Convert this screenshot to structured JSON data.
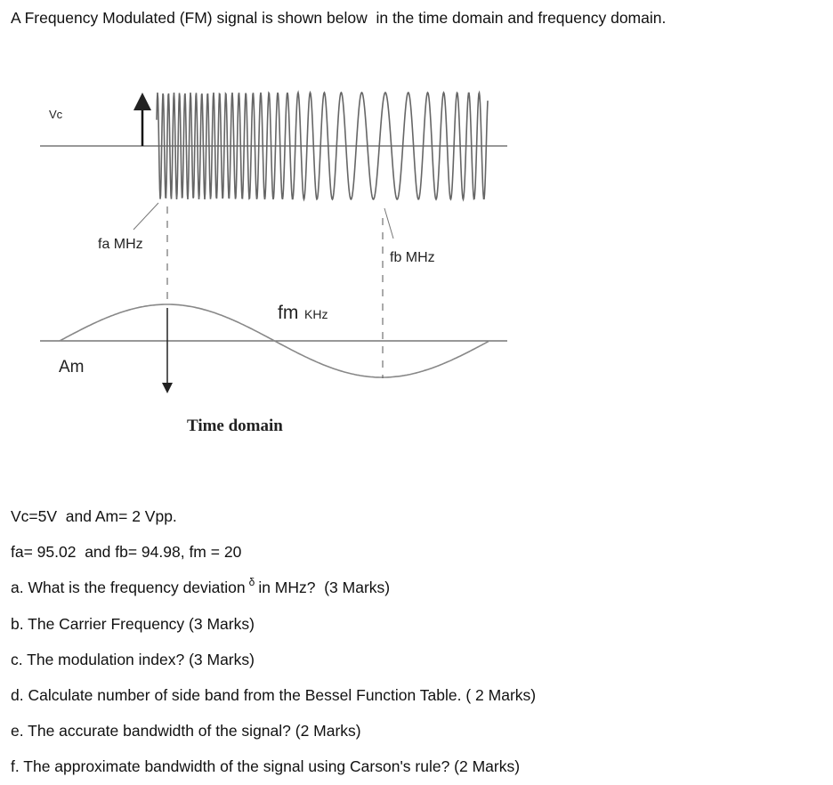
{
  "header": {
    "title": "A Frequency Modulated (FM) signal is shown below  in the time domain and frequency domain."
  },
  "diagram": {
    "vc_label": "Vc",
    "fa_label": "fa MHz",
    "fb_label": "fb MHz",
    "fm_label": "fm",
    "fm_unit": "KHz",
    "am_label": "Am",
    "caption": "Time domain"
  },
  "given": [
    "Vc=5V  and Am= 2 Vpp.",
    "fa= 95.02  and fb= 94.98, fm = 20"
  ],
  "questions": [
    {
      "text": "a. What is the frequency deviation",
      "symbol": "δ",
      "suffix": "in MHz?  (3 Marks)"
    },
    {
      "text": "b. The Carrier Frequency (3 Marks)"
    },
    {
      "text": "c. The modulation index? (3 Marks)"
    },
    {
      "text": "d. Calculate number of side band from the Bessel Function Table. ( 2 Marks)"
    },
    {
      "text": "e. The accurate bandwidth of the signal? (2 Marks)"
    },
    {
      "text": "f. The approximate bandwidth of the signal using Carson's rule? (2 Marks)"
    }
  ]
}
